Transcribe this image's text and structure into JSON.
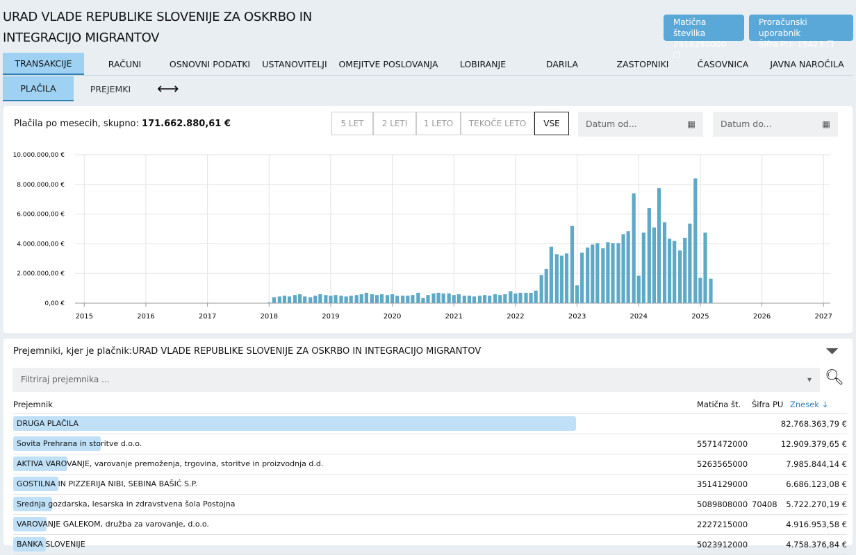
{
  "header": {
    "title_line1": "URAD VLADE REPUBLIKE SLOVENIJE ZA OSKRBO IN",
    "title_line2": "INTEGRACIJO MIGRANTOV",
    "badges": [
      {
        "label": "Matična številka",
        "value": "2516250000"
      },
      {
        "label": "Proračunski uporabnik",
        "value": "Šifra PU: 15423"
      }
    ]
  },
  "tabs": [
    "TRANSAKCIJE",
    "RAČUNI",
    "OSNOVNI PODATKI",
    "USTANOVITELJI",
    "OMEJITVE POSLOVANJA",
    "LOBIRANJE",
    "DARILA",
    "ZASTOPNIKI",
    "ČASOVNICA",
    "JAVNA NAROČILA"
  ],
  "subtabs": [
    "PLAČILA",
    "PREJEMKI"
  ],
  "chart_section": {
    "caption": "Plačila po mesecih, skupno:",
    "total": "171.662.880,61 €",
    "periods": [
      "5 LET",
      "2 LETI",
      "1 LETO",
      "TEKOČE LETO",
      "VSE"
    ],
    "date_from": "Datum od...",
    "date_to": "Datum do...",
    "chart": {
      "type": "bar",
      "color": "#5ea9c6",
      "grid": true,
      "xlim": [
        2014.85,
        2027.11
      ],
      "xticks": [
        2015,
        2016,
        2017,
        2018,
        2019,
        2020,
        2021,
        2022,
        2023,
        2024,
        2025,
        2026,
        2027
      ],
      "ylim": [
        0,
        10000000
      ],
      "yticks": [
        {
          "value": 0,
          "label": "0,00 €"
        },
        {
          "value": 2000000,
          "label": "2.000.000,00 €"
        },
        {
          "value": 4000000,
          "label": "4.000.000,00 €"
        },
        {
          "value": 6000000,
          "label": "6.000.000,00 €"
        },
        {
          "value": 8000000,
          "label": "8.000.000,00 €"
        },
        {
          "value": 10000000,
          "label": "10.000.000,00 €"
        }
      ],
      "x": [
        2018.0,
        2018.08,
        2018.17,
        2018.25,
        2018.33,
        2018.42,
        2018.5,
        2018.58,
        2018.67,
        2018.75,
        2018.83,
        2018.92,
        2019.0,
        2019.08,
        2019.17,
        2019.25,
        2019.33,
        2019.42,
        2019.5,
        2019.58,
        2019.67,
        2019.75,
        2019.83,
        2019.92,
        2020.0,
        2020.08,
        2020.17,
        2020.25,
        2020.33,
        2020.42,
        2020.5,
        2020.58,
        2020.67,
        2020.75,
        2020.83,
        2020.92,
        2021.0,
        2021.08,
        2021.17,
        2021.25,
        2021.33,
        2021.42,
        2021.5,
        2021.58,
        2021.67,
        2021.75,
        2021.83,
        2021.92,
        2022.0,
        2022.08,
        2022.17,
        2022.25,
        2022.33,
        2022.42,
        2022.5,
        2022.58,
        2022.67,
        2022.75,
        2022.83,
        2022.92,
        2023.0,
        2023.08,
        2023.17,
        2023.25,
        2023.33,
        2023.42,
        2023.5,
        2023.58,
        2023.67,
        2023.75,
        2023.83,
        2023.92,
        2024.0,
        2024.08,
        2024.17,
        2024.25,
        2024.33,
        2024.42,
        2024.5,
        2024.58,
        2024.67,
        2024.75,
        2024.83,
        2024.92,
        2025.0,
        2025.08,
        2025.17
      ],
      "values": [
        50000,
        400000,
        450000,
        500000,
        450000,
        550000,
        600000,
        450000,
        400000,
        500000,
        600000,
        550000,
        500000,
        550000,
        500000,
        450000,
        500000,
        550000,
        600000,
        700000,
        600000,
        550000,
        600000,
        550000,
        600000,
        500000,
        500000,
        500000,
        550000,
        700000,
        350000,
        550000,
        650000,
        700000,
        650000,
        650000,
        550000,
        600000,
        500000,
        500000,
        450000,
        500000,
        550000,
        500000,
        600000,
        550000,
        600000,
        800000,
        650000,
        700000,
        700000,
        700000,
        850000,
        1900000,
        2300000,
        3800000,
        3300000,
        3200000,
        3350000,
        5200000,
        1200000,
        3400000,
        3750000,
        3950000,
        4050000,
        3700000,
        4100000,
        4050000,
        4050000,
        4650000,
        4850000,
        7400000,
        1850000,
        4750000,
        6400000,
        5100000,
        7750000,
        5450000,
        4350000,
        4200000,
        3550000,
        4400000,
        5350000,
        8400000,
        1700000,
        4750000,
        1650000
      ]
    }
  },
  "recipients": {
    "title_prefix": "Prejemniki, kjer je plačnik:",
    "title_payer": "URAD VLADE REPUBLIKE SLOVENIJE ZA OSKRBO IN INTEGRACIJO MIGRANTOV",
    "filter_placeholder": "Filtriraj prejemnika ...",
    "columns": [
      "Prejemnik",
      "Matična št.",
      "Šifra PU",
      "Znesek ↓"
    ],
    "rows": [
      [
        "DRUGA PLAČILA",
        null,
        null,
        "82.768.363,79 €"
      ],
      [
        "Sovita Prehrana in storitve d.o.o.",
        "5571472000",
        null,
        "12.909.379,65 €"
      ],
      [
        "AKTIVA VAROVANJE, varovanje premoženja, trgovina, storitve in proizvodnja d.d.",
        "5263565000",
        null,
        "7.985.844,14 €"
      ],
      [
        "GOSTILNA IN PIZZERIJA NIBI, SEBINA BAŠIĆ S.P.",
        "3514129000",
        null,
        "6.686.123,08 €"
      ],
      [
        "Srednja gozdarska, lesarska in zdravstvena šola Postojna",
        "5089808000",
        "70408",
        "5.722.270,19 €"
      ],
      [
        "VAROVANJE GALEKOM, družba za varovanje, d.o.o.",
        "2227215000",
        null,
        "4.916.953,58 €"
      ],
      [
        "BANKA SLOVENIJE",
        "5023912000",
        null,
        "4.758.376,84 €"
      ]
    ]
  }
}
